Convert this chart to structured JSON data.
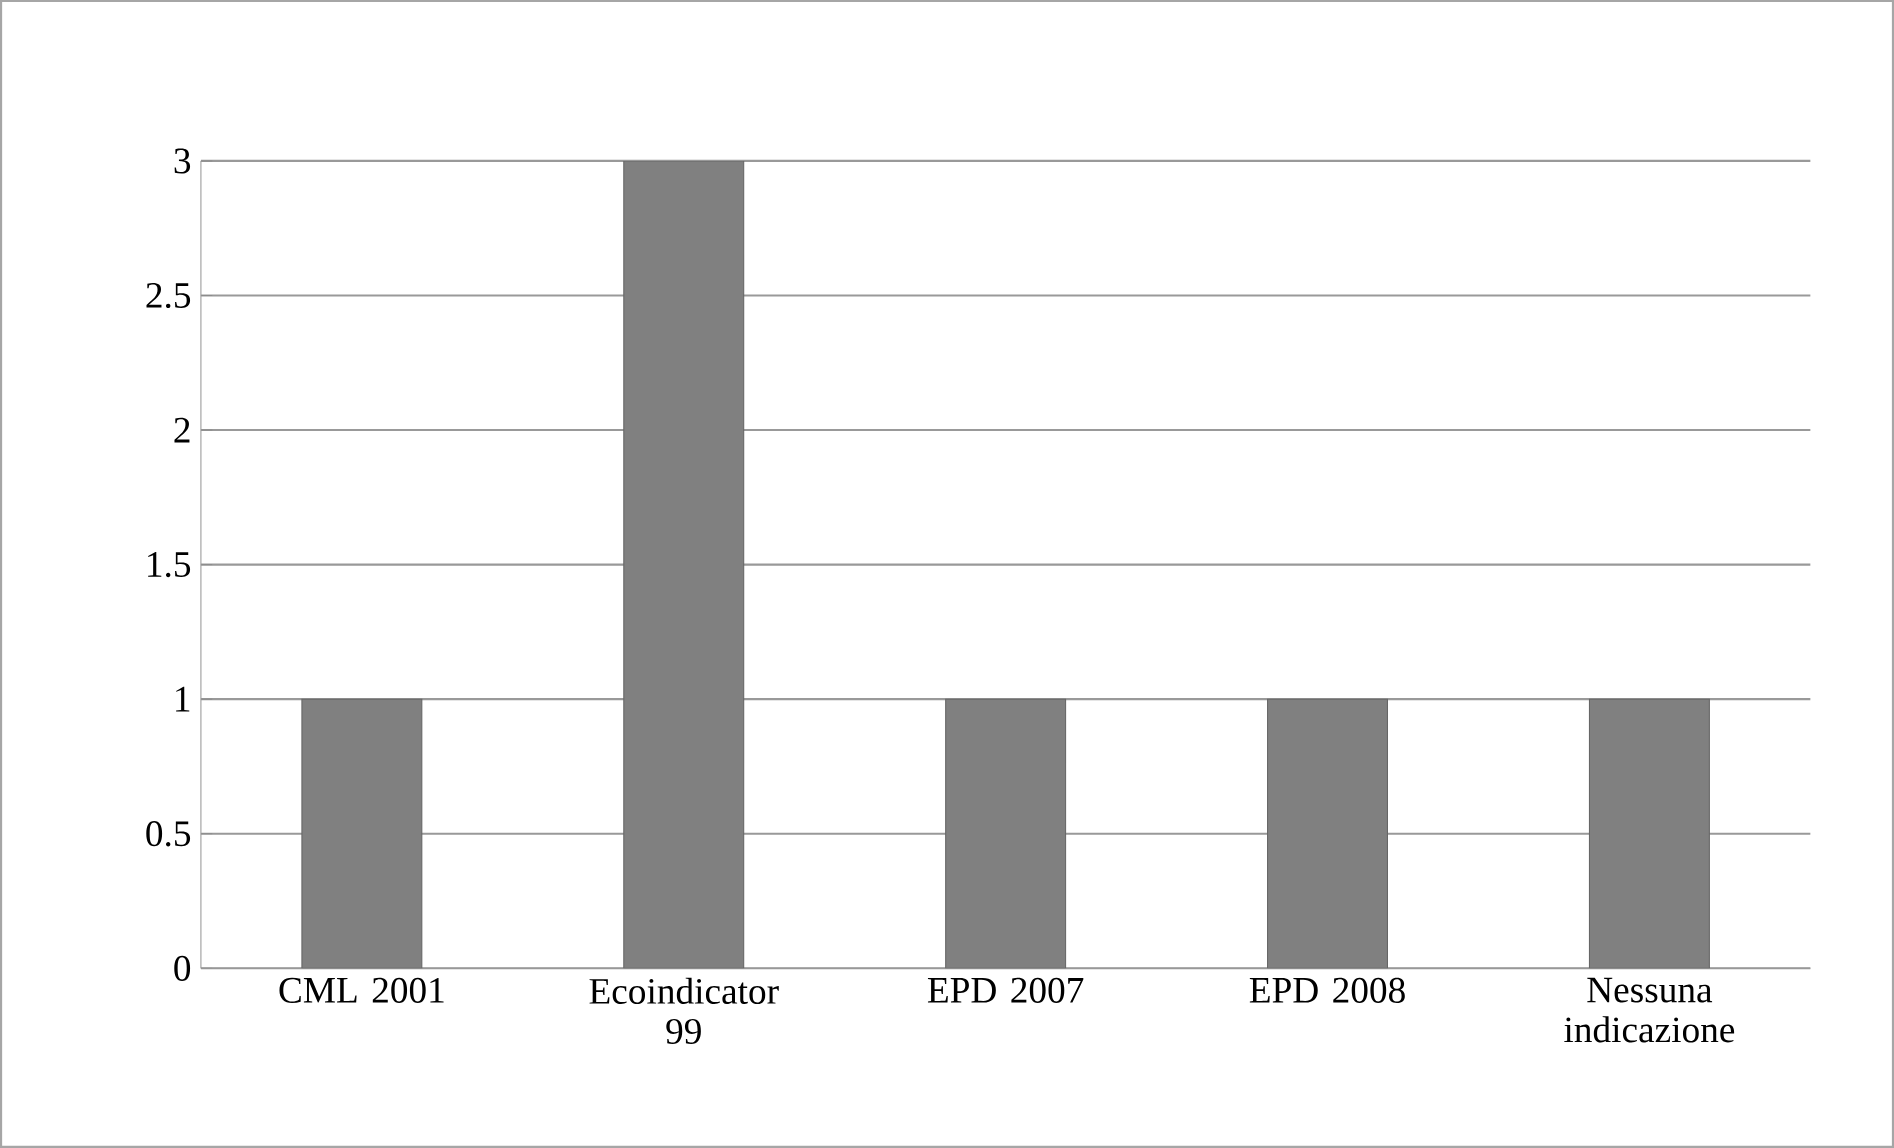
{
  "chart_data": {
    "type": "bar",
    "categories": [
      "CML 2001",
      "Ecoindicator 99",
      "EPD 2007",
      "EPD 2008",
      "Nessuna indicazione"
    ],
    "values": [
      1,
      3,
      1,
      1,
      1
    ],
    "color": "#808080",
    "ylim": [
      0,
      3
    ],
    "yticks": [
      0,
      0.5,
      1,
      1.5,
      2,
      2.5,
      3
    ],
    "grid": "y"
  }
}
